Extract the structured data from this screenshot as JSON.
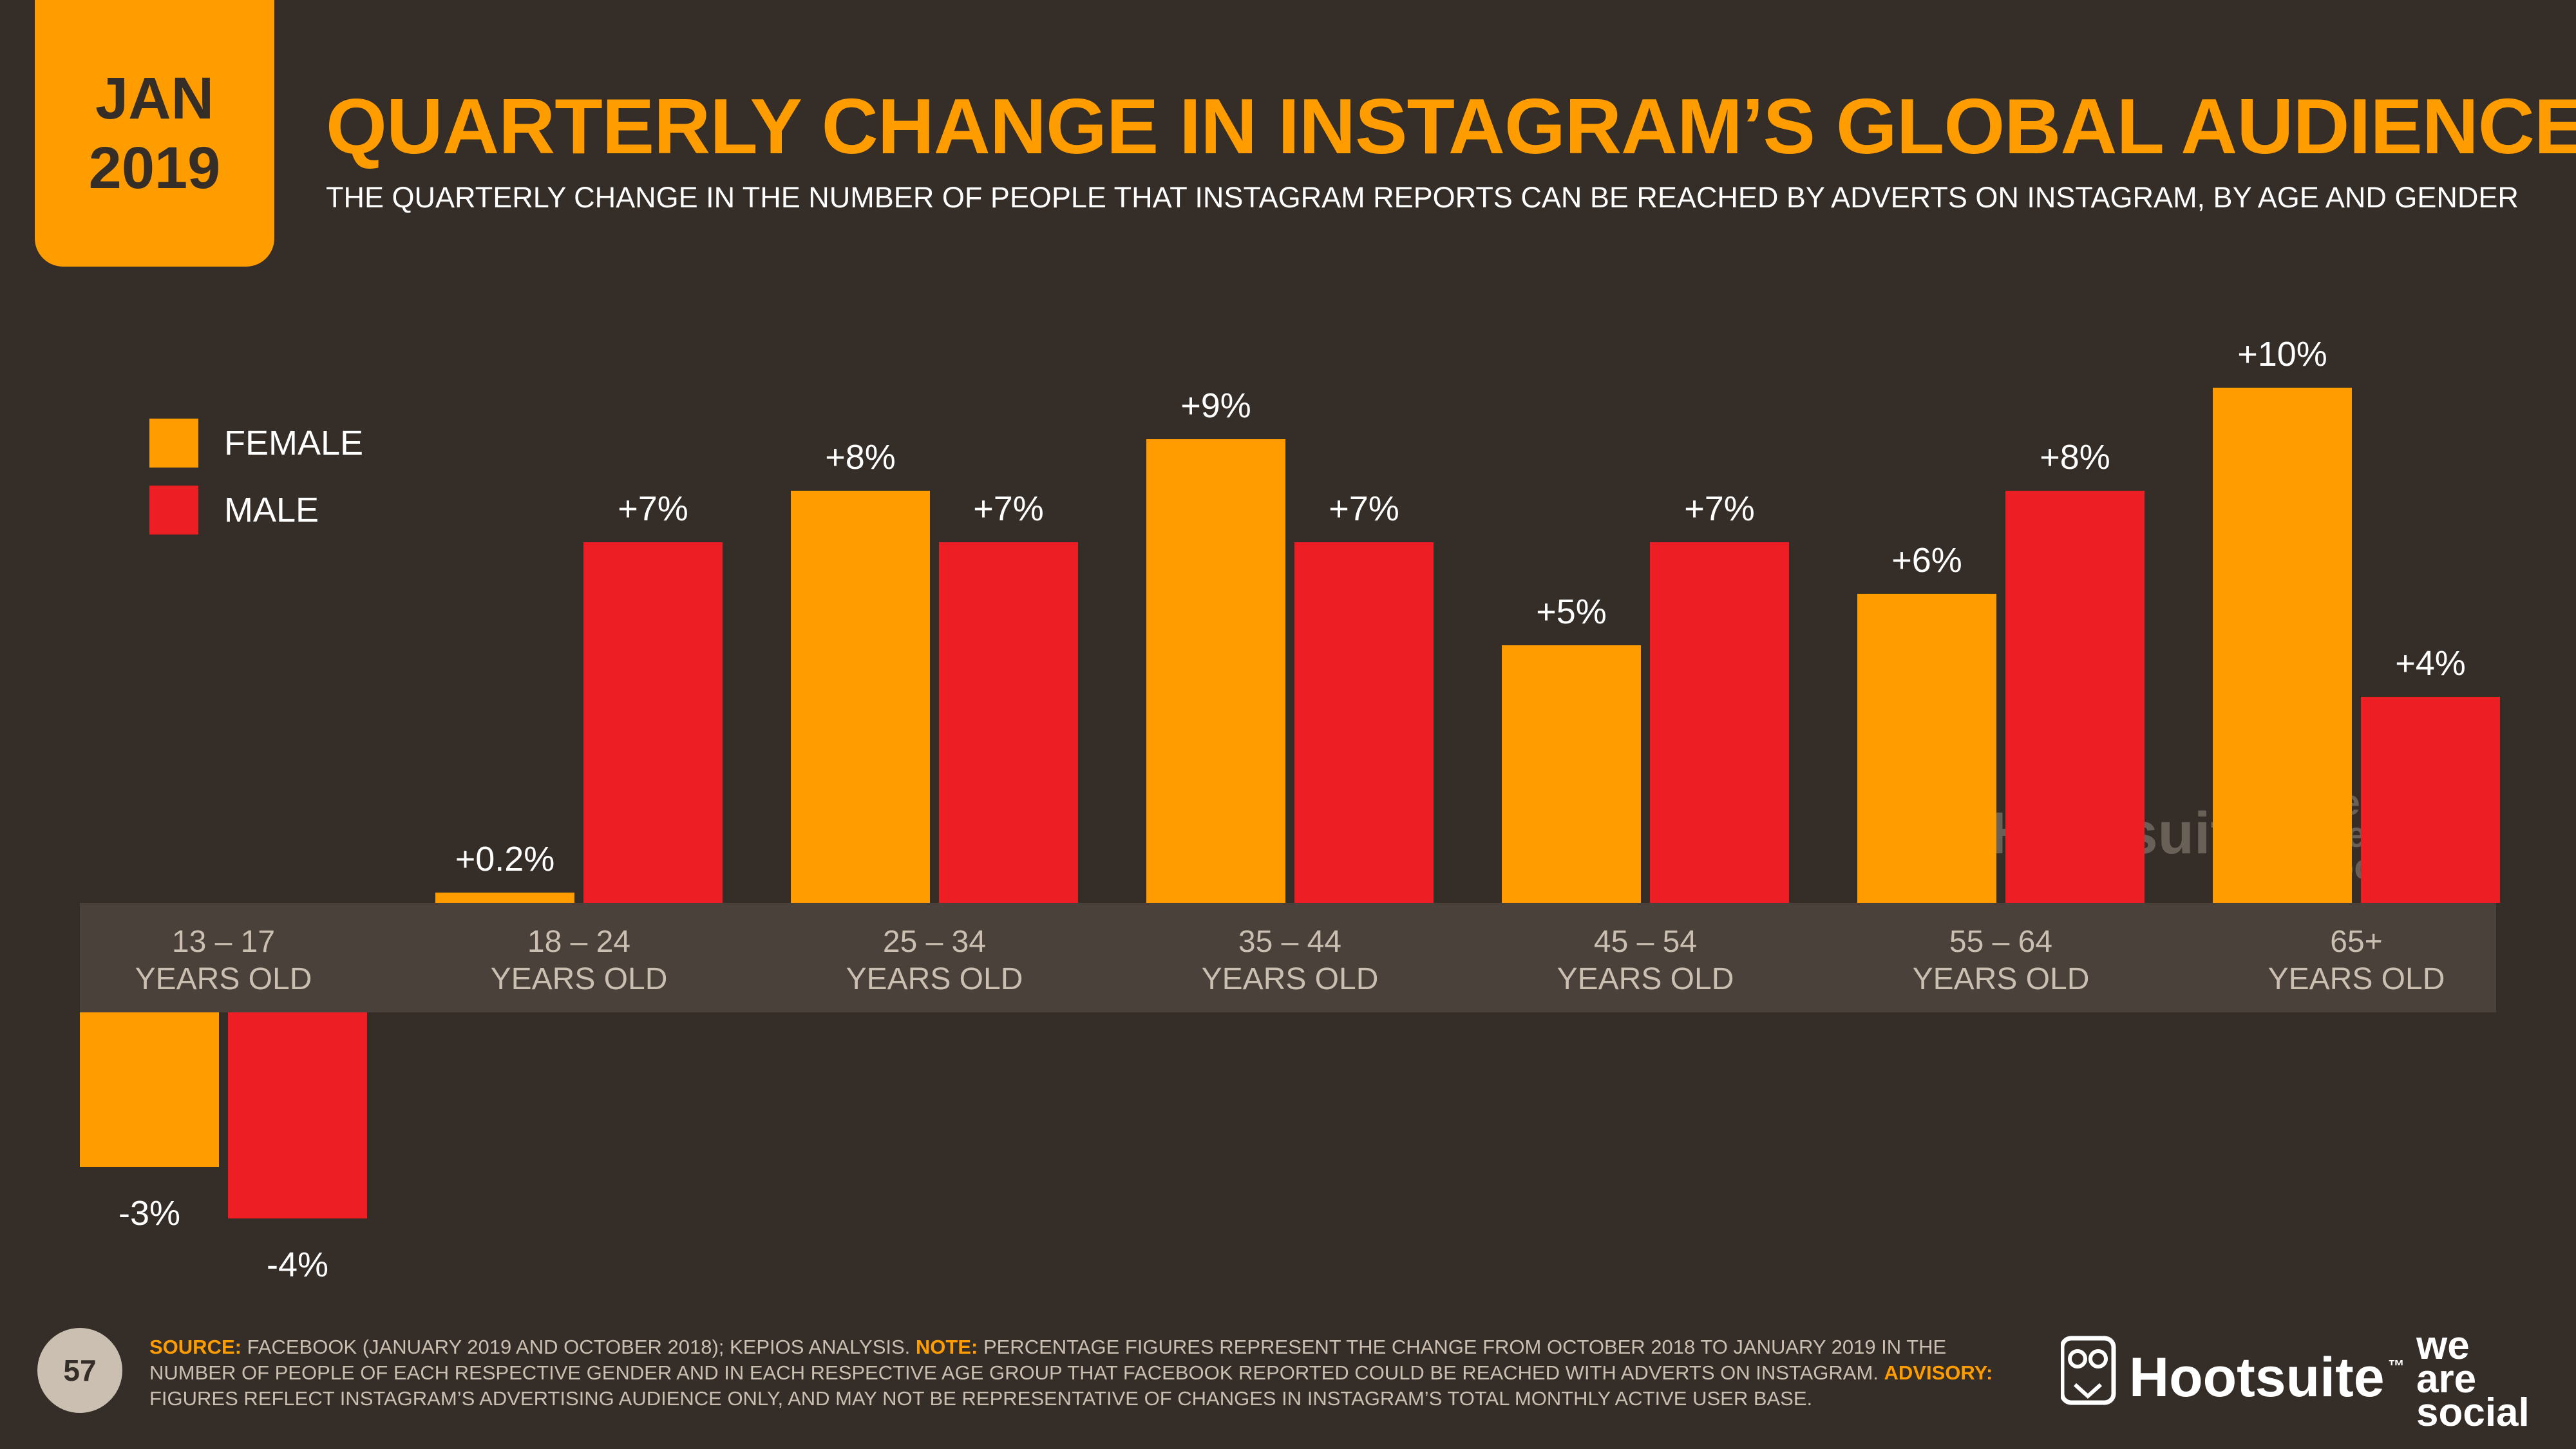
{
  "header": {
    "badge_month": "JAN",
    "badge_year": "2019",
    "title": "QUARTERLY CHANGE IN INSTAGRAM’S GLOBAL AUDIENCE",
    "subtitle": "THE QUARTERLY CHANGE IN THE NUMBER OF PEOPLE THAT INSTAGRAM REPORTS CAN BE REACHED BY ADVERTS ON INSTAGRAM, BY AGE AND GENDER"
  },
  "legend": [
    {
      "label": "FEMALE",
      "color": "#ff9d00"
    },
    {
      "label": "MALE",
      "color": "#ed1f24"
    }
  ],
  "chart_data": {
    "type": "bar",
    "title": "QUARTERLY CHANGE IN INSTAGRAM’S GLOBAL AUDIENCE",
    "categories": [
      [
        "13 – 17",
        "YEARS OLD"
      ],
      [
        "18 – 24",
        "YEARS OLD"
      ],
      [
        "25 – 34",
        "YEARS OLD"
      ],
      [
        "35 – 44",
        "YEARS OLD"
      ],
      [
        "45 – 54",
        "YEARS OLD"
      ],
      [
        "55 – 64",
        "YEARS OLD"
      ],
      [
        "65+",
        "YEARS OLD"
      ]
    ],
    "series": [
      {
        "name": "FEMALE",
        "color": "#ff9d00",
        "values": [
          -3,
          0.2,
          8,
          9,
          5,
          6,
          10
        ],
        "labels": [
          "-3%",
          "+0.2%",
          "+8%",
          "+9%",
          "+5%",
          "+6%",
          "+10%"
        ]
      },
      {
        "name": "MALE",
        "color": "#ed1f24",
        "values": [
          -4,
          7,
          7,
          7,
          7,
          8,
          4
        ],
        "labels": [
          "-4%",
          "+7%",
          "+7%",
          "+7%",
          "+7%",
          "+8%",
          "+4%"
        ]
      }
    ],
    "ylim": [
      -4,
      10
    ],
    "legend_position": "top-left",
    "grid": false
  },
  "footer": {
    "page_number": "57",
    "source_label": "SOURCE:",
    "source_text": " FACEBOOK (JANUARY 2019 AND OCTOBER 2018); KEPIOS ANALYSIS. ",
    "note_label": "NOTE:",
    "note_text": " PERCENTAGE FIGURES REPRESENT THE CHANGE FROM OCTOBER 2018 TO JANUARY 2019 IN THE NUMBER OF PEOPLE OF EACH RESPECTIVE GENDER AND IN EACH RESPECTIVE AGE GROUP THAT FACEBOOK REPORTED COULD BE REACHED WITH ADVERTS ON INSTAGRAM. ",
    "advisory_label": "ADVISORY:",
    "advisory_text": " FIGURES REFLECT INSTAGRAM’S ADVERTISING AUDIENCE ONLY, AND MAY NOT BE REPRESENTATIVE OF CHANGES IN INSTAGRAM’S TOTAL MONTHLY ACTIVE USER BASE."
  },
  "branding": {
    "hootsuite": "Hootsuite",
    "tm": "™",
    "we": "we",
    "are": "are",
    "social": "social"
  }
}
